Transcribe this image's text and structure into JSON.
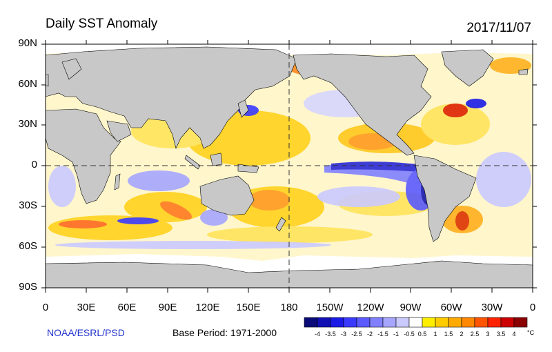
{
  "title": "Daily SST Anomaly",
  "date": "2017/11/07",
  "source": "NOAA/ESRL/PSD",
  "base_period": "Base Period: 1971-2000",
  "lat_labels": [
    "90N",
    "60N",
    "30N",
    "0",
    "30S",
    "60S",
    "90S"
  ],
  "lon_labels": [
    "0",
    "30E",
    "60E",
    "90E",
    "120E",
    "150E",
    "180",
    "150W",
    "120W",
    "90W",
    "60W",
    "30W",
    "0"
  ],
  "colorbar": {
    "unit": "°C",
    "ticks": [
      "-4",
      "-3.5",
      "-3",
      "-2.5",
      "-2",
      "-1.5",
      "-1",
      "-0.5",
      "0.5",
      "1",
      "1.5",
      "2",
      "2.5",
      "3",
      "3.5",
      "4"
    ],
    "colors": [
      "#0a0a78",
      "#1010b4",
      "#1a1ae6",
      "#3a3aff",
      "#5a5aff",
      "#8080ff",
      "#a6a6ff",
      "#cacaff",
      "#ffffff",
      "#ffee00",
      "#ffcc00",
      "#ffaa00",
      "#ff8800",
      "#ff5500",
      "#ff2200",
      "#cc0000",
      "#8b0000"
    ]
  },
  "colors": {
    "land": "#c8c8c8",
    "ice": "#ffffff",
    "warm": "#ffd21e",
    "cool": "#a6a6ff",
    "source_text": "#2233cc"
  }
}
